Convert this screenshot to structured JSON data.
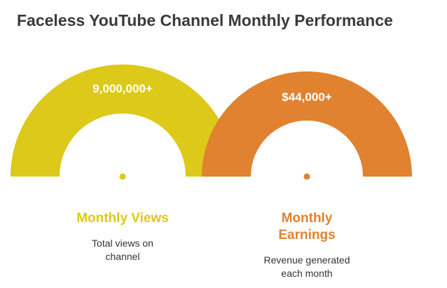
{
  "title": "Faceless YouTube Channel Monthly Performance",
  "metrics": [
    {
      "value": "9,000,000+",
      "label": "Monthly Views",
      "description_lines": [
        "Total views on",
        "channel"
      ],
      "color": "#dcc919"
    },
    {
      "value": "$44,000+",
      "label_lines": [
        "Monthly",
        "Earnings"
      ],
      "description_lines": [
        "Revenue generated",
        "each month"
      ],
      "color": "#e0822f"
    }
  ]
}
